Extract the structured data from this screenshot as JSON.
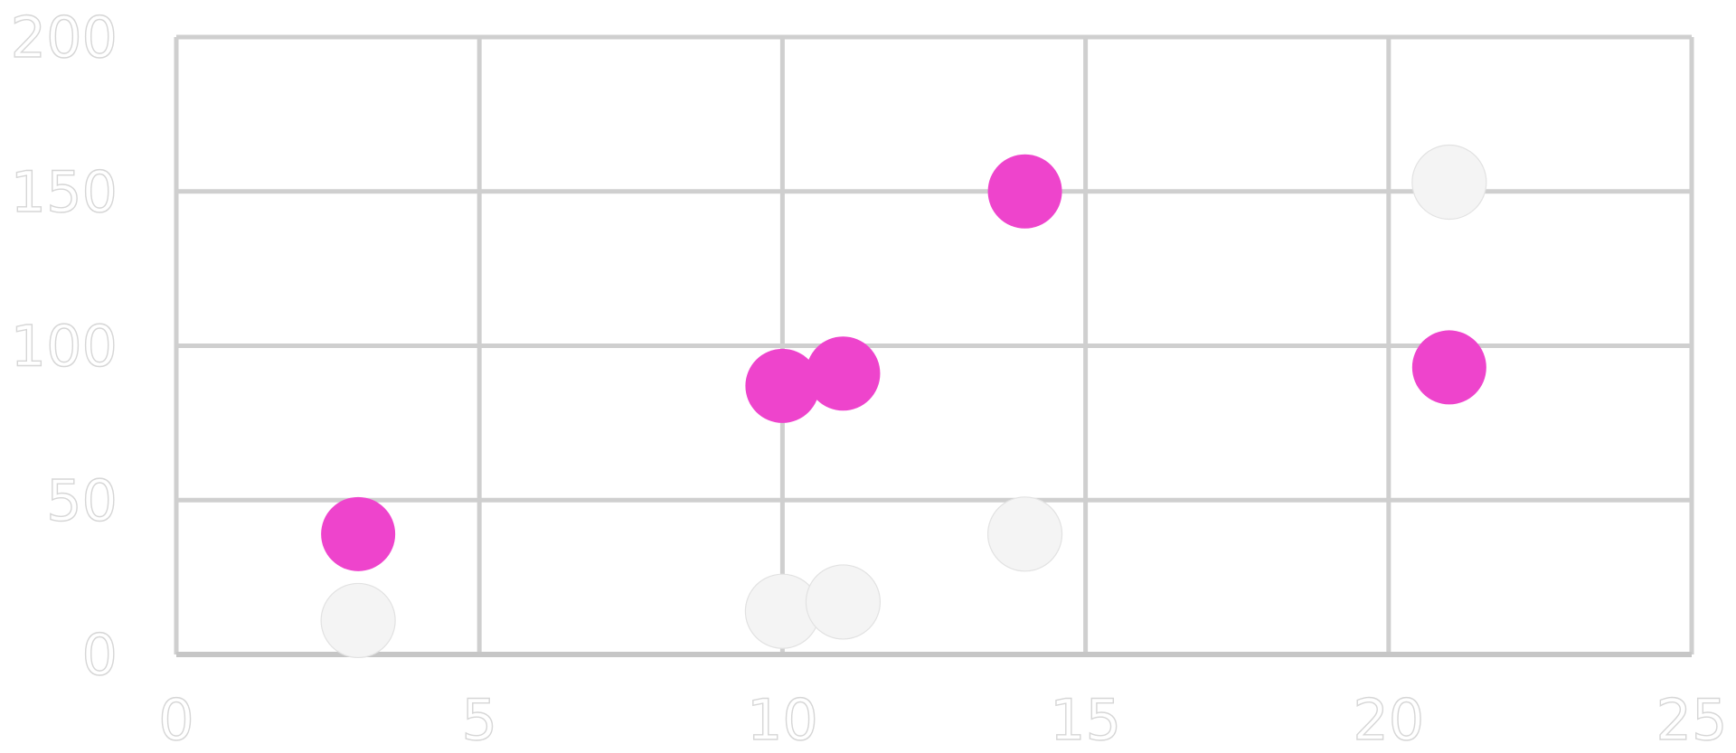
{
  "chart_data": {
    "type": "scatter",
    "title": "",
    "xlabel": "",
    "ylabel": "",
    "xlim": [
      0,
      25
    ],
    "ylim": [
      0,
      200
    ],
    "grid": true,
    "legend": "none",
    "x_ticks": [
      "0",
      "5",
      "10",
      "15",
      "20",
      "25"
    ],
    "y_ticks": [
      "0",
      "50",
      "100",
      "150",
      "200"
    ],
    "series": [
      {
        "name": "pink",
        "color": "#ee44cc",
        "x": [
          3,
          10,
          11,
          14,
          21
        ],
        "y": [
          39,
          87,
          91,
          150,
          93
        ]
      },
      {
        "name": "light",
        "color": "#f4f4f4",
        "x": [
          3,
          10,
          11,
          14,
          21
        ],
        "y": [
          11,
          14,
          17,
          39,
          153
        ]
      }
    ]
  },
  "colors": {
    "grid": "#cfcfcf",
    "axis": "#c6c6c6",
    "background": "#ffffff"
  }
}
